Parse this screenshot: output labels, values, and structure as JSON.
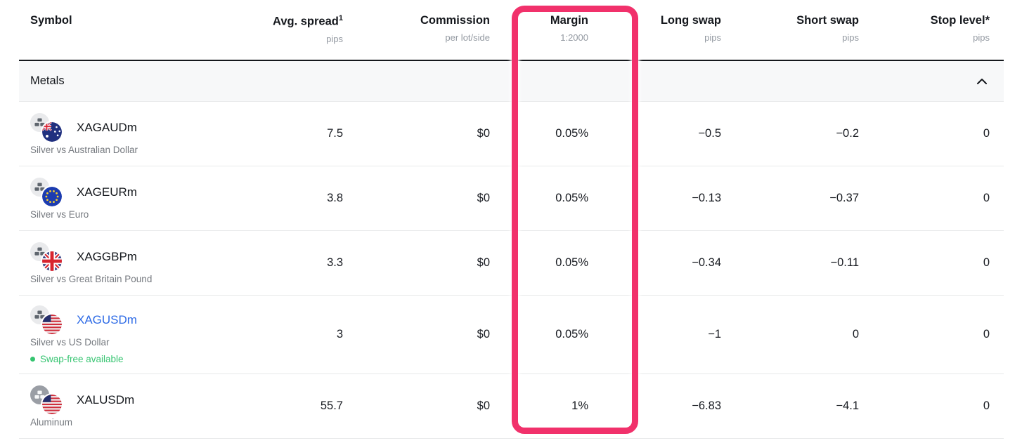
{
  "header": {
    "columns": [
      {
        "label": "Symbol",
        "sub": ""
      },
      {
        "label": "Avg. spread",
        "sup": "1",
        "sub": "pips"
      },
      {
        "label": "Commission",
        "sub": "per lot/side"
      },
      {
        "label": "Margin",
        "sub": "1:2000"
      },
      {
        "label": "Long swap",
        "sub": "pips"
      },
      {
        "label": "Short swap",
        "sub": "pips"
      },
      {
        "label": "Stop level*",
        "sub": "pips"
      }
    ]
  },
  "section": {
    "label": "Metals",
    "collapse_icon": "chevron-up"
  },
  "rows": [
    {
      "symbol": "XAGAUDm",
      "description": "Silver vs Australian Dollar",
      "metal": "silver",
      "flag": "australia",
      "is_link": false,
      "swap_free_label": "",
      "avg_spread": "7.5",
      "commission": "$0",
      "margin": "0.05%",
      "long_swap": "−0.5",
      "short_swap": "−0.2",
      "stop_level": "0"
    },
    {
      "symbol": "XAGEURm",
      "description": "Silver vs Euro",
      "metal": "silver",
      "flag": "eu",
      "is_link": false,
      "swap_free_label": "",
      "avg_spread": "3.8",
      "commission": "$0",
      "margin": "0.05%",
      "long_swap": "−0.13",
      "short_swap": "−0.37",
      "stop_level": "0"
    },
    {
      "symbol": "XAGGBPm",
      "description": "Silver vs Great Britain Pound",
      "metal": "silver",
      "flag": "uk",
      "is_link": false,
      "swap_free_label": "",
      "avg_spread": "3.3",
      "commission": "$0",
      "margin": "0.05%",
      "long_swap": "−0.34",
      "short_swap": "−0.11",
      "stop_level": "0"
    },
    {
      "symbol": "XAGUSDm",
      "description": "Silver vs US Dollar",
      "metal": "silver",
      "flag": "us",
      "is_link": true,
      "swap_free_label": "Swap-free available",
      "avg_spread": "3",
      "commission": "$0",
      "margin": "0.05%",
      "long_swap": "−1",
      "short_swap": "0",
      "stop_level": "0"
    },
    {
      "symbol": "XALUSDm",
      "description": "Aluminum",
      "metal": "aluminum",
      "flag": "us",
      "is_link": false,
      "swap_free_label": "",
      "avg_spread": "55.7",
      "commission": "$0",
      "margin": "1%",
      "long_swap": "−6.83",
      "short_swap": "−4.1",
      "stop_level": "0"
    }
  ],
  "annotation": {
    "shape": "rounded-rectangle",
    "color": "#f1316b",
    "highlights_column": "Margin"
  },
  "colors": {
    "link": "#2e6be6",
    "swap_free_green": "#35c470",
    "section_bg": "#f7f8f9",
    "row_border": "#e8e9ea",
    "header_border": "#15181d",
    "text": "#16191e",
    "muted_text": "#75797f",
    "unit_text": "#9399a1",
    "annotation_pink": "#f1316b"
  }
}
